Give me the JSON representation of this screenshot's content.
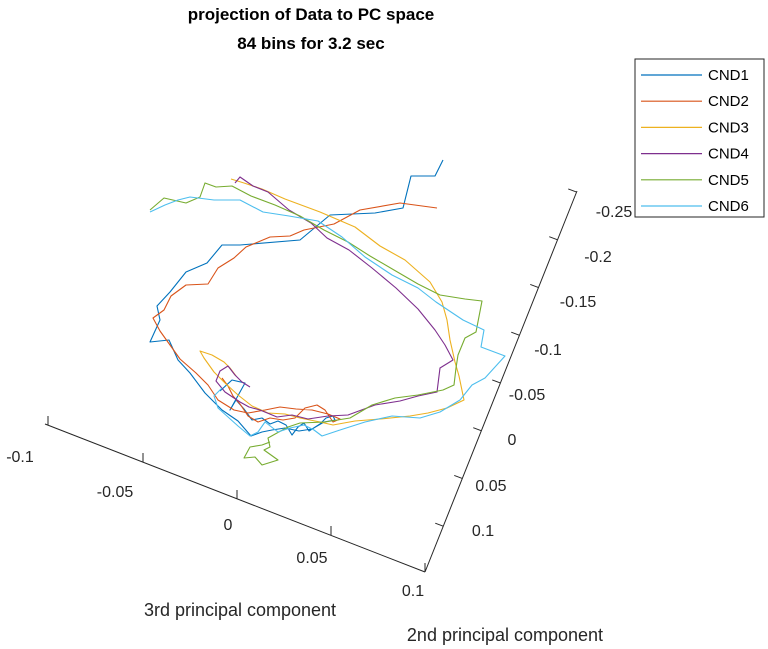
{
  "chart_data": {
    "type": "line",
    "projection": "3d",
    "title": [
      "projection of Data to PC space",
      "84 bins for 3.2 sec"
    ],
    "xlabel": "3rd principal component",
    "ylabel": "2nd principal component",
    "axes": {
      "front_left": {
        "ticks": [
          -0.1,
          -0.05,
          0,
          0.05,
          0.1
        ],
        "tick_labels": [
          "-0.1",
          "-0.05",
          "0",
          "0.05",
          "0.1"
        ]
      },
      "front_right": {
        "ticks": [
          0.1,
          0.05,
          0,
          -0.05,
          -0.1,
          -0.15,
          -0.2,
          -0.25
        ],
        "tick_labels": [
          "0.1",
          "0.05",
          "0",
          "-0.05",
          "-0.1",
          "-0.15",
          "-0.2",
          "-0.25"
        ]
      }
    },
    "legend": {
      "position": "top-right",
      "entries": [
        "CND1",
        "CND2",
        "CND3",
        "CND4",
        "CND5",
        "CND6"
      ]
    },
    "series": [
      {
        "name": "CND1",
        "color": "#0072BD"
      },
      {
        "name": "CND2",
        "color": "#D95319"
      },
      {
        "name": "CND3",
        "color": "#EDB120"
      },
      {
        "name": "CND4",
        "color": "#7E2F8E"
      },
      {
        "name": "CND5",
        "color": "#77AC30"
      },
      {
        "name": "CND6",
        "color": "#4DBEEE"
      }
    ],
    "grid": false
  }
}
